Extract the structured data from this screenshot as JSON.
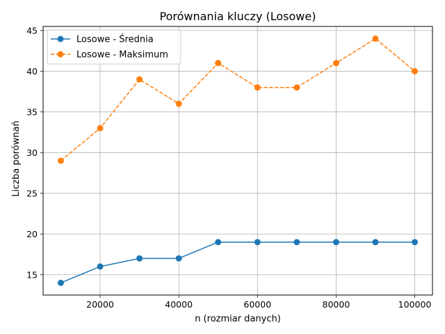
{
  "chart_data": {
    "type": "line",
    "title": "Porównania kluczy (Losowe)",
    "xlabel": "n (rozmiar danych)",
    "ylabel": "Liczba porównań",
    "x": [
      10000,
      20000,
      30000,
      40000,
      50000,
      60000,
      70000,
      80000,
      90000,
      100000
    ],
    "xlim": [
      5500,
      104500
    ],
    "ylim": [
      12.5,
      45.5
    ],
    "xticks": [
      20000,
      40000,
      60000,
      80000,
      100000
    ],
    "xtick_labels": [
      "20000",
      "40000",
      "60000",
      "80000",
      "100000"
    ],
    "yticks": [
      15,
      20,
      25,
      30,
      35,
      40,
      45
    ],
    "ytick_labels": [
      "15",
      "20",
      "25",
      "30",
      "35",
      "40",
      "45"
    ],
    "grid": true,
    "legend_position": "top-left",
    "series": [
      {
        "name": "Losowe - Średnia",
        "values": [
          14,
          16,
          17,
          17,
          19,
          19,
          19,
          19,
          19,
          19
        ],
        "color": "#1f77b4",
        "line_style": "solid",
        "marker": "circle"
      },
      {
        "name": "Losowe - Maksimum",
        "values": [
          29,
          33,
          39,
          36,
          41,
          38,
          38,
          41,
          44,
          40
        ],
        "color": "#ff7f0e",
        "line_style": "dashed",
        "marker": "circle"
      }
    ]
  }
}
